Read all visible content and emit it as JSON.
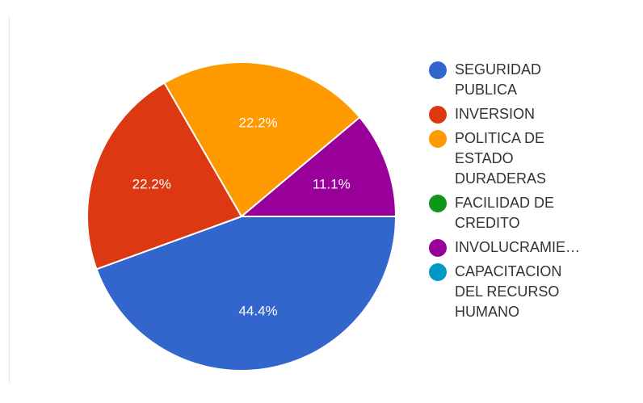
{
  "chart_data": {
    "type": "pie",
    "title": "",
    "legend_position": "right",
    "slices": [
      {
        "name": "SEGURIDAD\nPUBLICA",
        "value": 44.4,
        "label": "44.4%",
        "color": "#3366cc"
      },
      {
        "name": "INVERSION",
        "value": 22.2,
        "label": "22.2%",
        "color": "#dc3912"
      },
      {
        "name": "POLITICA DE\nESTADO\nDURADERAS",
        "value": 22.2,
        "label": "22.2%",
        "color": "#ff9900"
      },
      {
        "name": "FACILIDAD DE\nCREDITO",
        "value": 0,
        "label": "",
        "color": "#109618"
      },
      {
        "name": "INVOLUCRAMIE…",
        "value": 11.1,
        "label": "11.1%",
        "color": "#990099"
      },
      {
        "name": "CAPACITACION\nDEL RECURSO\nHUMANO",
        "value": 0,
        "label": "",
        "color": "#0099c6"
      }
    ]
  }
}
